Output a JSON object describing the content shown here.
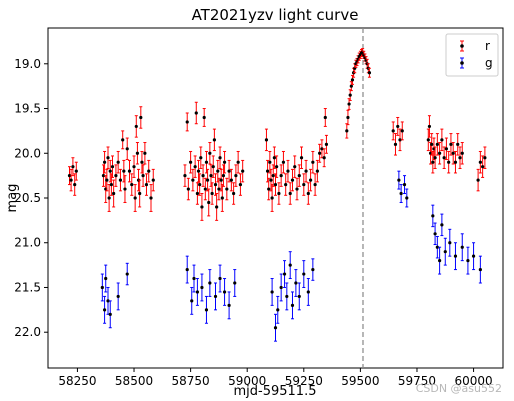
{
  "chart_data": {
    "type": "scatter",
    "title": "AT2021yzv  light curve",
    "xlabel": "mjd-59511.5",
    "ylabel": "mag",
    "xlim": [
      58120,
      60130
    ],
    "ylim": [
      22.4,
      18.6
    ],
    "y_inverted": true,
    "grid": false,
    "legend_position": "top-right",
    "xticks": [
      58250,
      58500,
      58750,
      59000,
      59250,
      59500,
      59750,
      60000
    ],
    "xtick_labels": [
      "58250",
      "58500",
      "58750",
      "59000",
      "59250",
      "59500",
      "59750",
      "60000"
    ],
    "yticks": [
      19.0,
      19.5,
      20.0,
      20.5,
      21.0,
      21.5,
      22.0
    ],
    "ytick_labels": [
      "19.0",
      "19.5",
      "20.0",
      "20.5",
      "21.0",
      "21.5",
      "22.0"
    ],
    "vline": {
      "x": 59511.5,
      "style": "dashed",
      "color": "#888888"
    },
    "series": [
      {
        "name": "r",
        "color": "#ff0000",
        "marker_color": "#000000",
        "points": [
          [
            58215,
            20.25,
            0.1
          ],
          [
            58222,
            20.3,
            0.12
          ],
          [
            58230,
            20.15,
            0.1
          ],
          [
            58238,
            20.35,
            0.12
          ],
          [
            58245,
            20.2,
            0.1
          ],
          [
            58365,
            20.25,
            0.12
          ],
          [
            58370,
            20.1,
            0.12
          ],
          [
            58375,
            20.4,
            0.15
          ],
          [
            58380,
            20.3,
            0.12
          ],
          [
            58385,
            20.05,
            0.12
          ],
          [
            58390,
            20.5,
            0.15
          ],
          [
            58395,
            20.2,
            0.12
          ],
          [
            58400,
            20.35,
            0.12
          ],
          [
            58405,
            20.15,
            0.12
          ],
          [
            58410,
            20.45,
            0.15
          ],
          [
            58420,
            20.25,
            0.12
          ],
          [
            58430,
            20.1,
            0.12
          ],
          [
            58440,
            20.3,
            0.12
          ],
          [
            58450,
            19.85,
            0.1
          ],
          [
            58455,
            20.2,
            0.12
          ],
          [
            58460,
            20.4,
            0.15
          ],
          [
            58470,
            19.95,
            0.12
          ],
          [
            58480,
            20.2,
            0.12
          ],
          [
            58490,
            20.35,
            0.12
          ],
          [
            58500,
            20.15,
            0.12
          ],
          [
            58505,
            20.5,
            0.15
          ],
          [
            58510,
            19.7,
            0.12
          ],
          [
            58515,
            20.0,
            0.12
          ],
          [
            58520,
            20.3,
            0.12
          ],
          [
            58525,
            20.45,
            0.15
          ],
          [
            58530,
            19.6,
            0.12
          ],
          [
            58535,
            20.1,
            0.12
          ],
          [
            58540,
            20.25,
            0.12
          ],
          [
            58548,
            20.0,
            0.12
          ],
          [
            58555,
            20.35,
            0.12
          ],
          [
            58565,
            20.2,
            0.12
          ],
          [
            58575,
            20.5,
            0.15
          ],
          [
            58585,
            20.3,
            0.12
          ],
          [
            58725,
            20.25,
            0.12
          ],
          [
            58735,
            19.65,
            0.1
          ],
          [
            58740,
            20.4,
            0.12
          ],
          [
            58750,
            20.1,
            0.12
          ],
          [
            58760,
            20.3,
            0.12
          ],
          [
            58770,
            20.15,
            0.12
          ],
          [
            58775,
            19.55,
            0.12
          ],
          [
            58780,
            20.45,
            0.12
          ],
          [
            58785,
            20.2,
            0.12
          ],
          [
            58790,
            20.35,
            0.12
          ],
          [
            58795,
            20.05,
            0.12
          ],
          [
            58800,
            20.6,
            0.15
          ],
          [
            58805,
            20.25,
            0.12
          ],
          [
            58810,
            19.6,
            0.1
          ],
          [
            58815,
            20.4,
            0.12
          ],
          [
            58820,
            20.1,
            0.12
          ],
          [
            58825,
            20.3,
            0.12
          ],
          [
            58830,
            20.55,
            0.15
          ],
          [
            58835,
            20.0,
            0.12
          ],
          [
            58840,
            20.25,
            0.12
          ],
          [
            58845,
            20.45,
            0.12
          ],
          [
            58850,
            20.15,
            0.12
          ],
          [
            58855,
            19.85,
            0.12
          ],
          [
            58860,
            20.35,
            0.12
          ],
          [
            58865,
            20.6,
            0.15
          ],
          [
            58870,
            20.2,
            0.12
          ],
          [
            58875,
            20.4,
            0.12
          ],
          [
            58880,
            20.05,
            0.12
          ],
          [
            58885,
            20.3,
            0.12
          ],
          [
            58890,
            20.5,
            0.15
          ],
          [
            58895,
            20.25,
            0.12
          ],
          [
            58900,
            20.1,
            0.12
          ],
          [
            58910,
            20.4,
            0.12
          ],
          [
            58920,
            20.2,
            0.12
          ],
          [
            58930,
            20.3,
            0.12
          ],
          [
            58940,
            20.45,
            0.12
          ],
          [
            58950,
            20.25,
            0.12
          ],
          [
            58960,
            20.1,
            0.12
          ],
          [
            58970,
            20.35,
            0.12
          ],
          [
            58980,
            20.2,
            0.12
          ],
          [
            59085,
            19.85,
            0.12
          ],
          [
            59090,
            20.2,
            0.12
          ],
          [
            59095,
            20.4,
            0.12
          ],
          [
            59100,
            20.1,
            0.12
          ],
          [
            59105,
            20.3,
            0.12
          ],
          [
            59110,
            20.5,
            0.15
          ],
          [
            59115,
            20.25,
            0.12
          ],
          [
            59120,
            20.05,
            0.12
          ],
          [
            59125,
            20.35,
            0.12
          ],
          [
            59130,
            20.15,
            0.12
          ],
          [
            59140,
            20.45,
            0.12
          ],
          [
            59150,
            20.25,
            0.12
          ],
          [
            59160,
            20.1,
            0.12
          ],
          [
            59170,
            20.35,
            0.12
          ],
          [
            59180,
            20.2,
            0.12
          ],
          [
            59190,
            20.45,
            0.12
          ],
          [
            59200,
            20.3,
            0.12
          ],
          [
            59210,
            20.15,
            0.12
          ],
          [
            59220,
            20.4,
            0.12
          ],
          [
            59230,
            20.25,
            0.12
          ],
          [
            59240,
            20.05,
            0.12
          ],
          [
            59250,
            20.35,
            0.12
          ],
          [
            59260,
            20.2,
            0.12
          ],
          [
            59270,
            20.45,
            0.12
          ],
          [
            59280,
            20.3,
            0.12
          ],
          [
            59290,
            20.1,
            0.12
          ],
          [
            59300,
            20.35,
            0.12
          ],
          [
            59310,
            20.2,
            0.12
          ],
          [
            59320,
            20.0,
            0.1
          ],
          [
            59330,
            19.95,
            0.1
          ],
          [
            59340,
            20.05,
            0.1
          ],
          [
            59345,
            19.6,
            0.1
          ],
          [
            59350,
            19.9,
            0.1
          ],
          [
            59440,
            19.75,
            0.08
          ],
          [
            59445,
            19.6,
            0.08
          ],
          [
            59450,
            19.45,
            0.06
          ],
          [
            59455,
            19.35,
            0.06
          ],
          [
            59460,
            19.25,
            0.05
          ],
          [
            59465,
            19.18,
            0.05
          ],
          [
            59470,
            19.1,
            0.05
          ],
          [
            59475,
            19.05,
            0.05
          ],
          [
            59480,
            19.0,
            0.04
          ],
          [
            59485,
            18.98,
            0.04
          ],
          [
            59490,
            18.95,
            0.04
          ],
          [
            59495,
            18.92,
            0.04
          ],
          [
            59500,
            18.9,
            0.04
          ],
          [
            59505,
            18.88,
            0.04
          ],
          [
            59510,
            18.87,
            0.04
          ],
          [
            59515,
            18.9,
            0.04
          ],
          [
            59520,
            18.93,
            0.04
          ],
          [
            59525,
            18.96,
            0.04
          ],
          [
            59530,
            19.0,
            0.05
          ],
          [
            59535,
            19.05,
            0.05
          ],
          [
            59540,
            19.1,
            0.05
          ],
          [
            59645,
            19.75,
            0.1
          ],
          [
            59655,
            19.9,
            0.12
          ],
          [
            59665,
            19.7,
            0.1
          ],
          [
            59675,
            19.85,
            0.12
          ],
          [
            59685,
            19.75,
            0.1
          ],
          [
            59800,
            19.85,
            0.12
          ],
          [
            59805,
            19.7,
            0.12
          ],
          [
            59810,
            20.0,
            0.12
          ],
          [
            59815,
            19.9,
            0.12
          ],
          [
            59820,
            20.1,
            0.12
          ],
          [
            59825,
            19.95,
            0.12
          ],
          [
            59830,
            20.05,
            0.12
          ],
          [
            59840,
            19.9,
            0.12
          ],
          [
            59850,
            20.0,
            0.12
          ],
          [
            59860,
            19.85,
            0.12
          ],
          [
            59870,
            20.05,
            0.12
          ],
          [
            59880,
            19.95,
            0.12
          ],
          [
            59890,
            20.1,
            0.12
          ],
          [
            59900,
            19.9,
            0.12
          ],
          [
            59910,
            20.0,
            0.12
          ],
          [
            59920,
            20.1,
            0.12
          ],
          [
            59930,
            19.9,
            0.12
          ],
          [
            59940,
            20.05,
            0.12
          ],
          [
            59950,
            20.0,
            0.12
          ],
          [
            60020,
            20.3,
            0.12
          ],
          [
            60030,
            20.1,
            0.12
          ],
          [
            60040,
            20.15,
            0.12
          ],
          [
            60050,
            20.05,
            0.12
          ]
        ]
      },
      {
        "name": "g",
        "color": "#0000ff",
        "marker_color": "#000000",
        "points": [
          [
            58360,
            21.5,
            0.15
          ],
          [
            58370,
            21.75,
            0.15
          ],
          [
            58375,
            21.4,
            0.15
          ],
          [
            58385,
            21.65,
            0.15
          ],
          [
            58395,
            21.8,
            0.15
          ],
          [
            58430,
            21.6,
            0.15
          ],
          [
            58470,
            21.35,
            0.12
          ],
          [
            58735,
            21.3,
            0.15
          ],
          [
            58755,
            21.65,
            0.15
          ],
          [
            58765,
            21.4,
            0.15
          ],
          [
            58780,
            21.55,
            0.15
          ],
          [
            58800,
            21.5,
            0.15
          ],
          [
            58820,
            21.75,
            0.15
          ],
          [
            58835,
            21.45,
            0.15
          ],
          [
            58860,
            21.6,
            0.15
          ],
          [
            58880,
            21.4,
            0.15
          ],
          [
            58900,
            21.55,
            0.15
          ],
          [
            58920,
            21.7,
            0.15
          ],
          [
            58945,
            21.45,
            0.15
          ],
          [
            59110,
            21.55,
            0.15
          ],
          [
            59125,
            21.95,
            0.15
          ],
          [
            59135,
            21.75,
            0.15
          ],
          [
            59150,
            21.5,
            0.15
          ],
          [
            59165,
            21.35,
            0.15
          ],
          [
            59175,
            21.6,
            0.15
          ],
          [
            59190,
            21.25,
            0.15
          ],
          [
            59200,
            21.7,
            0.15
          ],
          [
            59215,
            21.45,
            0.15
          ],
          [
            59230,
            21.6,
            0.15
          ],
          [
            59250,
            21.35,
            0.15
          ],
          [
            59270,
            21.55,
            0.15
          ],
          [
            59290,
            21.3,
            0.12
          ],
          [
            59670,
            20.3,
            0.1
          ],
          [
            59680,
            20.45,
            0.1
          ],
          [
            59695,
            20.35,
            0.1
          ],
          [
            59705,
            20.5,
            0.1
          ],
          [
            59820,
            20.7,
            0.12
          ],
          [
            59830,
            20.9,
            0.12
          ],
          [
            59840,
            21.05,
            0.12
          ],
          [
            59850,
            21.2,
            0.15
          ],
          [
            59860,
            20.8,
            0.12
          ],
          [
            59875,
            21.1,
            0.15
          ],
          [
            59895,
            21.0,
            0.15
          ],
          [
            59920,
            21.15,
            0.15
          ],
          [
            59950,
            21.05,
            0.15
          ],
          [
            59975,
            21.2,
            0.15
          ],
          [
            60000,
            21.15,
            0.15
          ],
          [
            60030,
            21.3,
            0.15
          ]
        ]
      }
    ]
  },
  "watermark": "CSDN @asu552"
}
